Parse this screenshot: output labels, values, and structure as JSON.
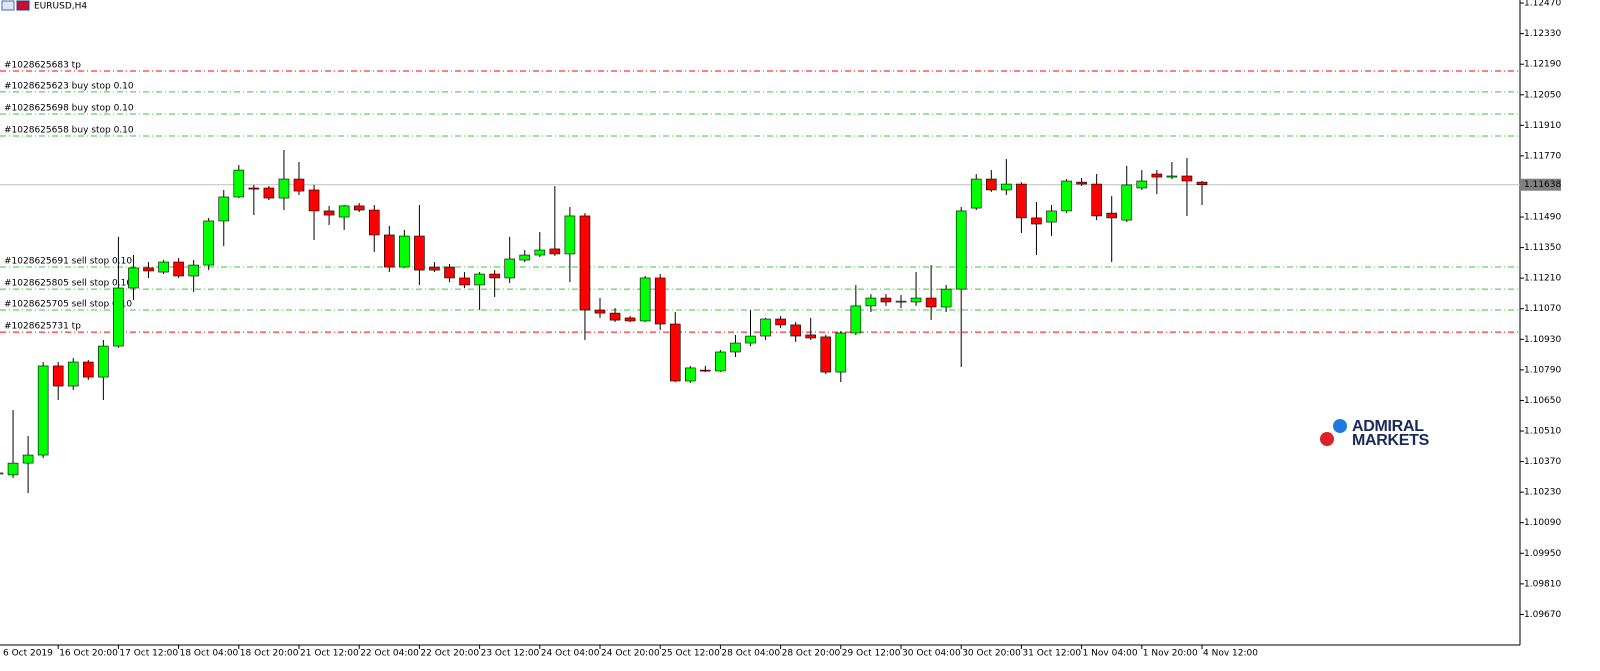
{
  "chart_data": {
    "type": "candlestick",
    "title": "EURUSD,H4",
    "watermark": [
      "ADMIRAL",
      "MARKETS"
    ],
    "up_color": "#00ff00",
    "down_color": "#ff0000",
    "categories": [
      "6 Oct 2019",
      null,
      null,
      null,
      "16 Oct 20:00",
      null,
      null,
      null,
      "17 Oct 12:00",
      null,
      null,
      null,
      "18 Oct 04:00",
      null,
      null,
      null,
      "18 Oct 20:00",
      null,
      null,
      null,
      "21 Oct 12:00",
      null,
      null,
      null,
      "22 Oct 04:00",
      null,
      null,
      null,
      "22 Oct 20:00",
      null,
      null,
      null,
      "23 Oct 12:00",
      null,
      null,
      null,
      "24 Oct 04:00",
      null,
      null,
      null,
      "24 Oct 20:00",
      null,
      null,
      null,
      "25 Oct 12:00",
      null,
      null,
      null,
      "28 Oct 04:00",
      null,
      null,
      null,
      "28 Oct 20:00",
      null,
      null,
      null,
      "29 Oct 12:00",
      null,
      null,
      null,
      "30 Oct 04:00",
      null,
      null,
      null,
      "30 Oct 20:00",
      null,
      null,
      null,
      "31 Oct 12:00",
      null,
      null,
      null,
      "1 Nov 04:00",
      null,
      null,
      null,
      "1 Nov 20:00",
      null,
      null,
      null,
      "4 Nov 12:00"
    ],
    "open": [
      1.10313,
      1.10309,
      1.10363,
      1.104,
      1.10808,
      1.10716,
      1.10826,
      1.10757,
      1.10899,
      1.11165,
      1.11257,
      1.11238,
      1.11284,
      1.1122,
      1.1127,
      1.11472,
      1.11582,
      1.11623,
      1.11623,
      1.11577,
      1.11664,
      1.11614,
      1.11518,
      1.1149,
      1.11541,
      1.11522,
      1.11408,
      1.11261,
      1.11403,
      1.11261,
      1.11261,
      1.11211,
      1.11179,
      1.11229,
      1.11211,
      1.11293,
      1.11316,
      1.11344,
      1.11321,
      1.11495,
      1.11064,
      1.1105,
      1.11028,
      1.11014,
      1.11211,
      1.11,
      1.10739,
      1.10789,
      1.10785,
      1.10872,
      1.10913,
      1.10945,
      1.11023,
      1.10996,
      1.1095,
      1.10941,
      1.1078,
      1.10959,
      1.11083,
      1.11119,
      1.11105,
      1.11101,
      1.11119,
      1.11078,
      1.1116,
      1.11531,
      1.11664,
      1.11614,
      1.11641,
      1.11486,
      1.11467,
      1.11518,
      1.1165,
      1.11641,
      1.11508,
      1.11476,
      1.11623,
      1.11687,
      1.11673,
      1.11678,
      1.1165
    ],
    "high": [
      1.10331,
      1.10606,
      1.10487,
      1.10826,
      1.10826,
      1.10844,
      1.10835,
      1.10927,
      1.11399,
      1.11316,
      1.11284,
      1.11293,
      1.11302,
      1.11293,
      1.11486,
      1.11614,
      1.11728,
      1.11637,
      1.11632,
      1.11797,
      1.11742,
      1.11637,
      1.11541,
      1.11545,
      1.11554,
      1.11545,
      1.11449,
      1.11431,
      1.11545,
      1.11284,
      1.11275,
      1.11238,
      1.11238,
      1.11247,
      1.11399,
      1.11339,
      1.11421,
      1.11632,
      1.11536,
      1.11508,
      1.11119,
      1.11073,
      1.11037,
      1.1122,
      1.11229,
      1.11055,
      1.10808,
      1.10808,
      1.10881,
      1.1095,
      1.11064,
      1.11028,
      1.11037,
      1.11009,
      1.11028,
      1.1095,
      1.10968,
      1.11179,
      1.11137,
      1.11137,
      1.11133,
      1.11238,
      1.1127,
      1.11179,
      1.11536,
      1.11687,
      1.11705,
      1.11756,
      1.1165,
      1.11559,
      1.11545,
      1.11664,
      1.11669,
      1.11687,
      1.11586,
      1.11724,
      1.11705,
      1.11705,
      1.11742,
      1.1176,
      1.11655
    ],
    "low": [
      1.10304,
      1.10295,
      1.10226,
      1.10386,
      1.10652,
      1.10698,
      1.10744,
      1.10652,
      1.1089,
      1.1111,
      1.11211,
      1.11229,
      1.11211,
      1.11147,
      1.11247,
      1.11357,
      1.11577,
      1.11499,
      1.11568,
      1.11522,
      1.11591,
      1.11385,
      1.11454,
      1.11431,
      1.11513,
      1.1133,
      1.11238,
      1.11257,
      1.11179,
      1.11238,
      1.11192,
      1.11165,
      1.11064,
      1.11124,
      1.11188,
      1.11284,
      1.11307,
      1.11312,
      1.11192,
      1.10927,
      1.11028,
      1.11009,
      1.11009,
      1.11009,
      1.10973,
      1.10734,
      1.1073,
      1.1078,
      1.1078,
      1.10849,
      1.10899,
      1.10927,
      1.10982,
      1.10918,
      1.10927,
      1.10771,
      1.10734,
      1.1095,
      1.11055,
      1.11083,
      1.11073,
      1.11083,
      1.11018,
      1.11055,
      1.10803,
      1.11522,
      1.11605,
      1.11591,
      1.11417,
      1.11316,
      1.11403,
      1.11508,
      1.11632,
      1.11476,
      1.11284,
      1.11467,
      1.11614,
      1.11595,
      1.11664,
      1.11495,
      1.11545
    ],
    "close": [
      1.10318,
      1.10363,
      1.104,
      1.10808,
      1.10716,
      1.10826,
      1.10757,
      1.10899,
      1.11165,
      1.11257,
      1.11243,
      1.11284,
      1.1122,
      1.1127,
      1.11472,
      1.11582,
      1.11705,
      1.11618,
      1.11577,
      1.11664,
      1.11609,
      1.11518,
      1.11499,
      1.11541,
      1.11522,
      1.11408,
      1.11261,
      1.11403,
      1.11247,
      1.11247,
      1.11211,
      1.11179,
      1.11229,
      1.11211,
      1.11298,
      1.11316,
      1.11339,
      1.11321,
      1.11495,
      1.11064,
      1.1105,
      1.11018,
      1.11014,
      1.11211,
      1.11,
      1.10739,
      1.10799,
      1.10785,
      1.10872,
      1.10913,
      1.10945,
      1.11023,
      1.10996,
      1.10945,
      1.10936,
      1.1078,
      1.10959,
      1.11083,
      1.11119,
      1.11101,
      1.11105,
      1.11119,
      1.11078,
      1.1116,
      1.11518,
      1.11664,
      1.11614,
      1.11641,
      1.11486,
      1.11458,
      1.11518,
      1.11655,
      1.11641,
      1.11495,
      1.11486,
      1.11637,
      1.11655,
      1.11673,
      1.11678,
      1.11655,
      1.11638
    ],
    "current_price": 1.11638,
    "levels": [
      {
        "label": "#1028625683 tp",
        "value": 1.12159,
        "color": "#ff0000"
      },
      {
        "label": "#1028625623 buy stop 0.10",
        "value": 1.12063,
        "color": "#33cc33"
      },
      {
        "label": "#1028625698 buy stop 0.10",
        "value": 1.11962,
        "color": "#33cc33"
      },
      {
        "label": "#1028625658 buy stop 0.10",
        "value": 1.11861,
        "color": "#33cc33"
      },
      {
        "label": "#1028625691 sell stop 0.10",
        "value": 1.11261,
        "color": "#33cc33"
      },
      {
        "label": "#1028625805 sell stop 0.10",
        "value": 1.1116,
        "color": "#33cc33"
      },
      {
        "label": "#1028625705 sell stop 0.10",
        "value": 1.11064,
        "color": "#33cc33"
      },
      {
        "label": "#1028625731 tp",
        "value": 1.10963,
        "color": "#ff0000"
      }
    ],
    "ylim": [
      1.0953,
      1.12484
    ],
    "yticks": [
      {
        "value": 1.1247,
        "label": "1.12470"
      },
      {
        "value": 1.1233,
        "label": "1.12330"
      },
      {
        "value": 1.1219,
        "label": "1.12190"
      },
      {
        "value": 1.1205,
        "label": "1.12050"
      },
      {
        "value": 1.1191,
        "label": "1.11910"
      },
      {
        "value": 1.1177,
        "label": "1.11770"
      },
      {
        "value": 1.1149,
        "label": "1.11490"
      },
      {
        "value": 1.1135,
        "label": "1.11350"
      },
      {
        "value": 1.1121,
        "label": "1.11210"
      },
      {
        "value": 1.1107,
        "label": "1.11070"
      },
      {
        "value": 1.1093,
        "label": "1.10930"
      },
      {
        "value": 1.1079,
        "label": "1.10790"
      },
      {
        "value": 1.1065,
        "label": "1.10650"
      },
      {
        "value": 1.1051,
        "label": "1.10510"
      },
      {
        "value": 1.1037,
        "label": "1.10370"
      },
      {
        "value": 1.1023,
        "label": "1.10230"
      },
      {
        "value": 1.1009,
        "label": "1.10090"
      },
      {
        "value": 1.0995,
        "label": "1.09950"
      },
      {
        "value": 1.0981,
        "label": "1.09810"
      },
      {
        "value": 1.0967,
        "label": "1.09670"
      }
    ]
  }
}
